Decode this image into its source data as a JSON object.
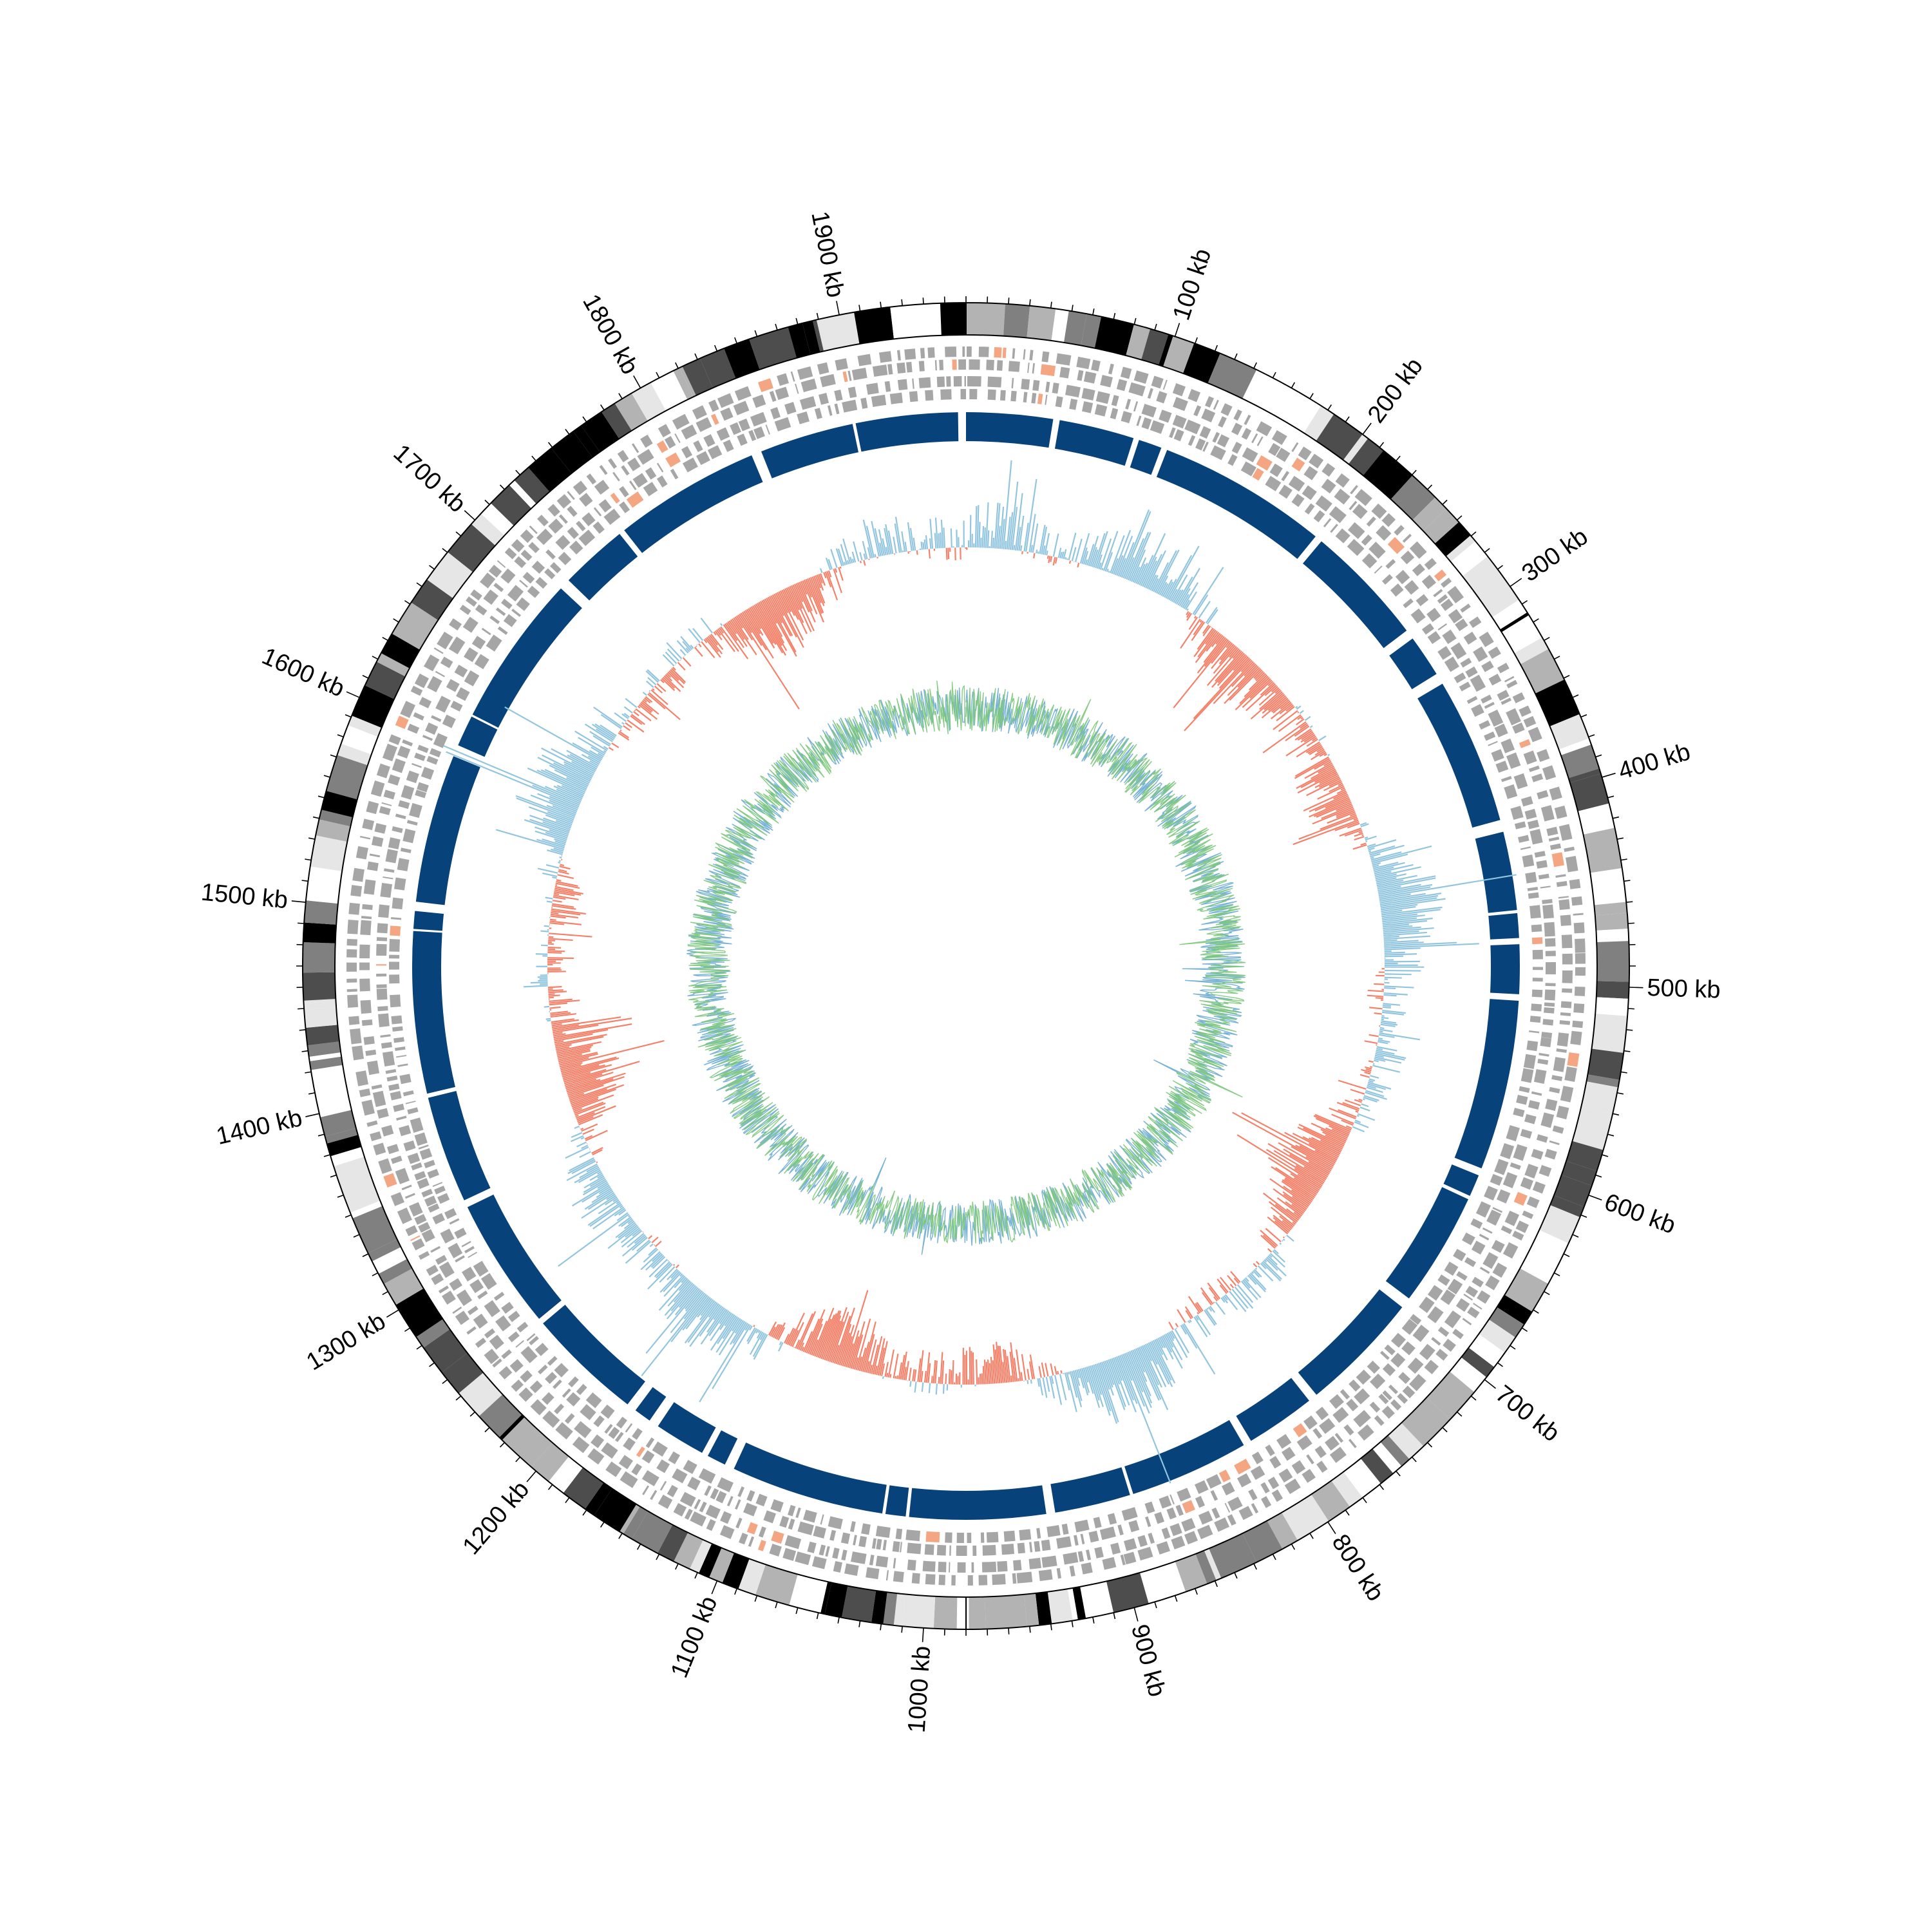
{
  "genome": {
    "length_kb": 1960,
    "start_angle": "top",
    "direction": "clockwise"
  },
  "tick_labels": [
    "100 kb",
    "200 kb",
    "300 kb",
    "400 kb",
    "500 kb",
    "600 kb",
    "700 kb",
    "800 kb",
    "900 kb",
    "1000 kb",
    "1100 kb",
    "1200 kb",
    "1300 kb",
    "1400 kb",
    "1500 kb",
    "1600 kb",
    "1700 kb",
    "1800 kb",
    "1900 kb"
  ],
  "tick_positions_kb": [
    100,
    200,
    300,
    400,
    500,
    600,
    700,
    800,
    900,
    1000,
    1100,
    1200,
    1300,
    1400,
    1500,
    1600,
    1700,
    1800,
    1900
  ],
  "minor_tick_step_kb": 10,
  "tracks": [
    {
      "id": "karyotype-bands",
      "kind": "bands",
      "colors": [
        "#000000",
        "#4d4d4d",
        "#808080",
        "#b3b3b3",
        "#e6e6e6",
        "#ffffff"
      ]
    },
    {
      "id": "genes-outer",
      "kind": "feature-blocks",
      "color": "#a6a6a6",
      "accent": "#f4a582"
    },
    {
      "id": "genes-inner",
      "kind": "feature-blocks",
      "color": "#a6a6a6",
      "accent": "#f4a582"
    },
    {
      "id": "coding-regions",
      "kind": "blocks",
      "color": "#08427a"
    },
    {
      "id": "gc-skew",
      "kind": "bidirectional-histogram",
      "positive_color": "#92c5de",
      "negative_color": "#f4826a"
    },
    {
      "id": "gc-content",
      "kind": "line",
      "colors": [
        "#6aabd2",
        "#7bc77a"
      ]
    }
  ]
}
